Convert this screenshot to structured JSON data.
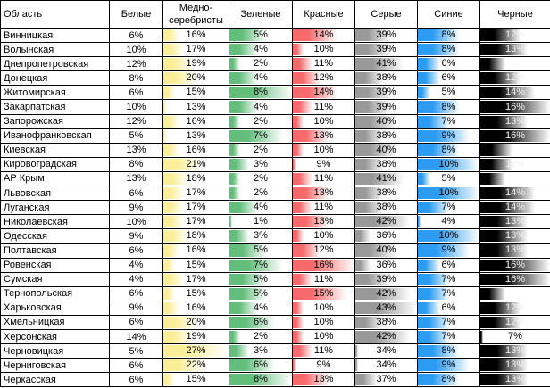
{
  "chart_data": {
    "type": "table",
    "title": "",
    "legend": "Each data column shows percent with a gradient data bar scaled to the column min/max",
    "columns": [
      {
        "key": "region",
        "label": "Область",
        "kind": "text"
      },
      {
        "key": "white",
        "label": "Белые",
        "kind": "percent"
      },
      {
        "key": "copper",
        "label": "Медно-серебристы",
        "kind": "databar",
        "bar_color": "#fbee98",
        "scale_min": 13,
        "scale_max": 27
      },
      {
        "key": "green",
        "label": "Зеленые",
        "kind": "databar",
        "bar_color": "#63be7b",
        "scale_min": 1,
        "scale_max": 8
      },
      {
        "key": "red",
        "label": "Красные",
        "kind": "databar",
        "bar_color": "#f8696b",
        "scale_min": 9,
        "scale_max": 16
      },
      {
        "key": "grey",
        "label": "Серые",
        "kind": "databar",
        "bar_color": "#999999",
        "scale_min": 34,
        "scale_max": 43
      },
      {
        "key": "blue",
        "label": "Синие",
        "kind": "databar",
        "bar_color": "#2b9cf2",
        "scale_min": 4,
        "scale_max": 10
      },
      {
        "key": "black",
        "label": "Черные",
        "kind": "databar",
        "bar_color": "#000000",
        "scale_min": 7,
        "scale_max": 16,
        "value_text_color": "#f2f2f2"
      }
    ],
    "rows": [
      {
        "region": "Винницкая",
        "white": 6,
        "copper": 16,
        "green": 5,
        "red": 14,
        "grey": 39,
        "blue": 8,
        "black": 12,
        "black_display": "12%"
      },
      {
        "region": "Волынская",
        "white": 10,
        "copper": 17,
        "green": 4,
        "red": 10,
        "grey": 39,
        "blue": 8,
        "black": 13,
        "black_display": "13%"
      },
      {
        "region": "Днепропетровская",
        "white": 12,
        "copper": 19,
        "green": 2,
        "red": 11,
        "grey": 41,
        "blue": 6,
        "black": 10,
        "black_display": ""
      },
      {
        "region": "Донецкая",
        "white": 8,
        "copper": 20,
        "green": 4,
        "red": 12,
        "grey": 38,
        "blue": 6,
        "black": 12,
        "black_display": "12%"
      },
      {
        "region": "Житомирская",
        "white": 6,
        "copper": 15,
        "green": 8,
        "red": 14,
        "grey": 39,
        "blue": 5,
        "black": 14,
        "black_display": "14%"
      },
      {
        "region": "Закарпатская",
        "white": 10,
        "copper": 13,
        "green": 4,
        "red": 11,
        "grey": 39,
        "blue": 8,
        "black": 16,
        "black_display": "16%"
      },
      {
        "region": "Запорожская",
        "white": 12,
        "copper": 16,
        "green": 2,
        "red": 10,
        "grey": 40,
        "blue": 7,
        "black": 13,
        "black_display": "13%"
      },
      {
        "region": "Иванофранковская",
        "white": 5,
        "copper": 13,
        "green": 7,
        "red": 13,
        "grey": 38,
        "blue": 9,
        "black": 16,
        "black_display": "16%"
      },
      {
        "region": "Киевская",
        "white": 13,
        "copper": 16,
        "green": 2,
        "red": 10,
        "grey": 40,
        "blue": 8,
        "black": 11,
        "black_display": ""
      },
      {
        "region": "Кировоградская",
        "white": 8,
        "copper": 21,
        "green": 3,
        "red": 9,
        "grey": 38,
        "blue": 10,
        "black": 11,
        "black_display": "11%"
      },
      {
        "region": "АР Крым",
        "white": 13,
        "copper": 18,
        "green": 2,
        "red": 11,
        "grey": 41,
        "blue": 5,
        "black": 10,
        "black_display": ""
      },
      {
        "region": "Львовская",
        "white": 6,
        "copper": 17,
        "green": 2,
        "red": 13,
        "grey": 38,
        "blue": 10,
        "black": 14,
        "black_display": "14%"
      },
      {
        "region": "Луганская",
        "white": 9,
        "copper": 17,
        "green": 4,
        "red": 11,
        "grey": 38,
        "blue": 7,
        "black": 14,
        "black_display": "14%"
      },
      {
        "region": "Николаевская",
        "white": 10,
        "copper": 17,
        "green": 1,
        "red": 13,
        "grey": 42,
        "blue": 4,
        "black": 13,
        "black_display": "13%"
      },
      {
        "region": "Одесская",
        "white": 9,
        "copper": 18,
        "green": 3,
        "red": 10,
        "grey": 36,
        "blue": 10,
        "black": 13,
        "black_display": "13%"
      },
      {
        "region": "Полтавская",
        "white": 6,
        "copper": 16,
        "green": 5,
        "red": 12,
        "grey": 40,
        "blue": 9,
        "black": 13,
        "black_display": "13%"
      },
      {
        "region": "Ровенская",
        "white": 4,
        "copper": 15,
        "green": 7,
        "red": 16,
        "grey": 36,
        "blue": 6,
        "black": 16,
        "black_display": "16%"
      },
      {
        "region": "Сумская",
        "white": 4,
        "copper": 17,
        "green": 5,
        "red": 11,
        "grey": 39,
        "blue": 7,
        "black": 16,
        "black_display": "16%"
      },
      {
        "region": "Тернопольская",
        "white": 6,
        "copper": 15,
        "green": 5,
        "red": 15,
        "grey": 42,
        "blue": 7,
        "black": 10,
        "black_display": ""
      },
      {
        "region": "Харьковская",
        "white": 9,
        "copper": 16,
        "green": 4,
        "red": 10,
        "grey": 43,
        "blue": 6,
        "black": 12,
        "black_display": "12%"
      },
      {
        "region": "Хмельницкая",
        "white": 6,
        "copper": 20,
        "green": 6,
        "red": 10,
        "grey": 38,
        "blue": 7,
        "black": 12,
        "black_display": "12%"
      },
      {
        "region": "Херсонская",
        "white": 14,
        "copper": 19,
        "green": 2,
        "red": 10,
        "grey": 42,
        "blue": 7,
        "black": 7,
        "black_display": "7%",
        "black_text_color": "#000000"
      },
      {
        "region": "Черновицкая",
        "white": 5,
        "copper": 27,
        "green": 3,
        "red": 11,
        "grey": 34,
        "blue": 8,
        "black": 13,
        "black_display": "13%"
      },
      {
        "region": "Черниговская",
        "white": 6,
        "copper": 22,
        "green": 6,
        "red": 9,
        "grey": 34,
        "blue": 9,
        "black": 13,
        "black_display": "13%"
      },
      {
        "region": "Черкасская",
        "white": 6,
        "copper": 15,
        "green": 8,
        "red": 13,
        "grey": 37,
        "blue": 8,
        "black": 13,
        "black_display": "13%"
      }
    ]
  }
}
